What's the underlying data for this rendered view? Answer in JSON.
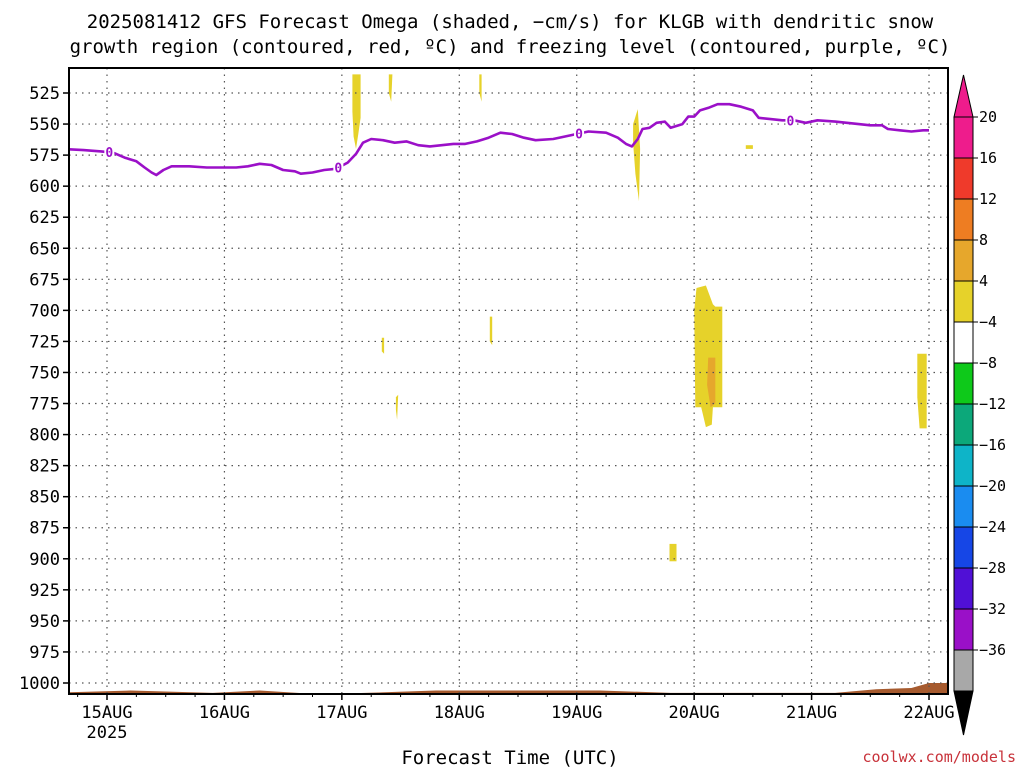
{
  "chart_data": {
    "type": "heatmap",
    "title_line1": "2025081412 GFS Forecast Omega (shaded, −cm/s) for KLGB with dendritic snow",
    "title_line2": "growth region (contoured, red, ºC) and freezing level (contoured, purple, ºC)",
    "xlabel": "Forecast Time (UTC)",
    "credit": "coolwx.com/models",
    "x_ticks": [
      {
        "label": "15AUG",
        "sub": "2025",
        "day": 15
      },
      {
        "label": "16AUG",
        "sub": "",
        "day": 16
      },
      {
        "label": "17AUG",
        "sub": "",
        "day": 17
      },
      {
        "label": "18AUG",
        "sub": "",
        "day": 18
      },
      {
        "label": "19AUG",
        "sub": "",
        "day": 19
      },
      {
        "label": "20AUG",
        "sub": "",
        "day": 20
      },
      {
        "label": "21AUG",
        "sub": "",
        "day": 21
      },
      {
        "label": "22AUG",
        "sub": "",
        "day": 22
      }
    ],
    "xlim_days": [
      14.5,
      22.0
    ],
    "pressure_levels": [
      525,
      550,
      575,
      600,
      625,
      650,
      675,
      700,
      725,
      750,
      775,
      800,
      825,
      850,
      875,
      900,
      925,
      950,
      975,
      1000
    ],
    "ylim": [
      510,
      1015
    ],
    "grid": true,
    "colorbar": {
      "levels": [
        -36,
        -32,
        -28,
        -24,
        -20,
        -16,
        -12,
        -8,
        -4,
        4,
        8,
        12,
        16,
        20
      ],
      "labels": [
        "20",
        "16",
        "12",
        "8",
        "4",
        "−4",
        "−8",
        "−12",
        "−16",
        "−20",
        "−24",
        "−28",
        "−32",
        "−36"
      ],
      "colors_top_to_bottom": [
        "#ee1c8c",
        "#ef3a2b",
        "#ee7d22",
        "#e6a72c",
        "#e6d22a",
        "#ffffff",
        "#0ec91a",
        "#0ca87a",
        "#0eb4c8",
        "#1a8cf0",
        "#1646e6",
        "#5010d6",
        "#9a10c8",
        "#a8a8a8"
      ],
      "over_color": "#ee1c8c",
      "under_color": "#000000"
    },
    "freezing_level": {
      "name": "freezing level",
      "contour_label": "0",
      "color": "#9b10c8",
      "points": [
        [
          14.5,
          572
        ],
        [
          14.6,
          570
        ],
        [
          14.8,
          571
        ],
        [
          14.95,
          572
        ],
        [
          15.05,
          573
        ],
        [
          15.15,
          577
        ],
        [
          15.25,
          580
        ],
        [
          15.32,
          585
        ],
        [
          15.38,
          589
        ],
        [
          15.42,
          591
        ],
        [
          15.48,
          587
        ],
        [
          15.55,
          584
        ],
        [
          15.7,
          584
        ],
        [
          15.85,
          585
        ],
        [
          16.0,
          585
        ],
        [
          16.1,
          585
        ],
        [
          16.2,
          584
        ],
        [
          16.3,
          582
        ],
        [
          16.4,
          583
        ],
        [
          16.5,
          587
        ],
        [
          16.6,
          588
        ],
        [
          16.65,
          590
        ],
        [
          16.75,
          589
        ],
        [
          16.85,
          587
        ],
        [
          16.95,
          586
        ],
        [
          17.05,
          581
        ],
        [
          17.12,
          574
        ],
        [
          17.18,
          565
        ],
        [
          17.25,
          562
        ],
        [
          17.35,
          563
        ],
        [
          17.45,
          565
        ],
        [
          17.55,
          564
        ],
        [
          17.65,
          567
        ],
        [
          17.75,
          568
        ],
        [
          17.85,
          567
        ],
        [
          17.95,
          566
        ],
        [
          18.05,
          566
        ],
        [
          18.15,
          564
        ],
        [
          18.25,
          561
        ],
        [
          18.35,
          557
        ],
        [
          18.45,
          558
        ],
        [
          18.55,
          561
        ],
        [
          18.65,
          563
        ],
        [
          18.8,
          562
        ],
        [
          18.9,
          560
        ],
        [
          19.0,
          558
        ],
        [
          19.1,
          556
        ],
        [
          19.25,
          557
        ],
        [
          19.35,
          561
        ],
        [
          19.42,
          566
        ],
        [
          19.47,
          568
        ],
        [
          19.52,
          562
        ],
        [
          19.56,
          554
        ],
        [
          19.62,
          553
        ],
        [
          19.68,
          549
        ],
        [
          19.75,
          548
        ],
        [
          19.8,
          553
        ],
        [
          19.9,
          550
        ],
        [
          19.95,
          544
        ],
        [
          20.0,
          544
        ],
        [
          20.05,
          539
        ],
        [
          20.12,
          537
        ],
        [
          20.2,
          534
        ],
        [
          20.3,
          534
        ],
        [
          20.4,
          536
        ],
        [
          20.5,
          539
        ],
        [
          20.55,
          545
        ],
        [
          20.65,
          546
        ],
        [
          20.75,
          547
        ],
        [
          20.85,
          547
        ],
        [
          20.95,
          549
        ],
        [
          21.05,
          547
        ],
        [
          21.2,
          548
        ],
        [
          21.3,
          549
        ],
        [
          21.4,
          550
        ],
        [
          21.5,
          551
        ],
        [
          21.6,
          551
        ],
        [
          21.65,
          554
        ],
        [
          21.75,
          555
        ],
        [
          21.85,
          556
        ],
        [
          21.95,
          555
        ],
        [
          22.0,
          555
        ]
      ],
      "label_days": [
        15.02,
        16.97,
        19.02,
        20.82
      ]
    },
    "omega_regions": [
      {
        "level": 4,
        "color": "#e6d22a",
        "polygon": [
          [
            14.51,
            512
          ],
          [
            14.54,
            512
          ],
          [
            14.53,
            523
          ],
          [
            14.51,
            521
          ]
        ]
      },
      {
        "level": 4,
        "color": "#e6d22a",
        "polygon": [
          [
            17.09,
            510
          ],
          [
            17.16,
            510
          ],
          [
            17.16,
            545
          ],
          [
            17.14,
            558
          ],
          [
            17.12,
            570
          ],
          [
            17.1,
            560
          ],
          [
            17.09,
            540
          ]
        ]
      },
      {
        "level": 4,
        "color": "#e6d22a",
        "polygon": [
          [
            17.4,
            510
          ],
          [
            17.43,
            510
          ],
          [
            17.42,
            532
          ],
          [
            17.4,
            525
          ]
        ]
      },
      {
        "level": 4,
        "color": "#e6d22a",
        "polygon": [
          [
            18.17,
            510
          ],
          [
            18.19,
            510
          ],
          [
            18.19,
            532
          ],
          [
            18.17,
            525
          ]
        ]
      },
      {
        "level": 4,
        "color": "#e6d22a",
        "polygon": [
          [
            19.48,
            550
          ],
          [
            19.52,
            538
          ],
          [
            19.54,
            570
          ],
          [
            19.53,
            612
          ],
          [
            19.5,
            590
          ],
          [
            19.48,
            565
          ]
        ]
      },
      {
        "level": 4,
        "color": "#e6d22a",
        "polygon": [
          [
            20.44,
            567
          ],
          [
            20.5,
            567
          ],
          [
            20.5,
            570
          ],
          [
            20.44,
            570
          ]
        ]
      },
      {
        "level": 4,
        "color": "#e6d22a",
        "polygon": [
          [
            17.34,
            722
          ],
          [
            17.36,
            722
          ],
          [
            17.36,
            735
          ],
          [
            17.34,
            733
          ]
        ]
      },
      {
        "level": 4,
        "color": "#e6d22a",
        "polygon": [
          [
            17.46,
            770
          ],
          [
            17.48,
            768
          ],
          [
            17.47,
            788
          ],
          [
            17.46,
            780
          ]
        ]
      },
      {
        "level": 4,
        "color": "#e6d22a",
        "polygon": [
          [
            18.26,
            705
          ],
          [
            18.28,
            705
          ],
          [
            18.28,
            728
          ],
          [
            18.26,
            725
          ]
        ]
      },
      {
        "level": 4,
        "color": "#e6d22a",
        "polygon": [
          [
            20.02,
            682
          ],
          [
            20.1,
            680
          ],
          [
            20.16,
            695
          ],
          [
            20.18,
            697
          ],
          [
            20.24,
            697
          ],
          [
            20.24,
            778
          ],
          [
            20.16,
            778
          ],
          [
            20.15,
            792
          ],
          [
            20.1,
            794
          ],
          [
            20.06,
            778
          ],
          [
            20.01,
            778
          ],
          [
            20.0,
            700
          ]
        ]
      },
      {
        "level": 8,
        "color": "#e6a72c",
        "polygon": [
          [
            20.12,
            738
          ],
          [
            20.18,
            738
          ],
          [
            20.18,
            775
          ],
          [
            20.14,
            778
          ],
          [
            20.11,
            760
          ]
        ]
      },
      {
        "level": 4,
        "color": "#e6d22a",
        "polygon": [
          [
            19.79,
            888
          ],
          [
            19.85,
            888
          ],
          [
            19.85,
            902
          ],
          [
            19.79,
            902
          ]
        ]
      },
      {
        "level": 4,
        "color": "#e6d22a",
        "polygon": [
          [
            21.9,
            735
          ],
          [
            21.98,
            735
          ],
          [
            21.98,
            795
          ],
          [
            21.92,
            795
          ],
          [
            21.9,
            770
          ]
        ]
      }
    ],
    "ground": {
      "color": "#a65a2e",
      "points": [
        [
          14.5,
          1008
        ],
        [
          15.2,
          1006
        ],
        [
          15.9,
          1008
        ],
        [
          16.3,
          1006
        ],
        [
          16.8,
          1009
        ],
        [
          17.2,
          1008
        ],
        [
          17.8,
          1006
        ],
        [
          18.5,
          1006
        ],
        [
          19.2,
          1006
        ],
        [
          19.8,
          1008
        ],
        [
          20.6,
          1008
        ],
        [
          21.2,
          1008
        ],
        [
          21.55,
          1005
        ],
        [
          21.85,
          1004
        ],
        [
          22.0,
          1000
        ]
      ]
    }
  }
}
